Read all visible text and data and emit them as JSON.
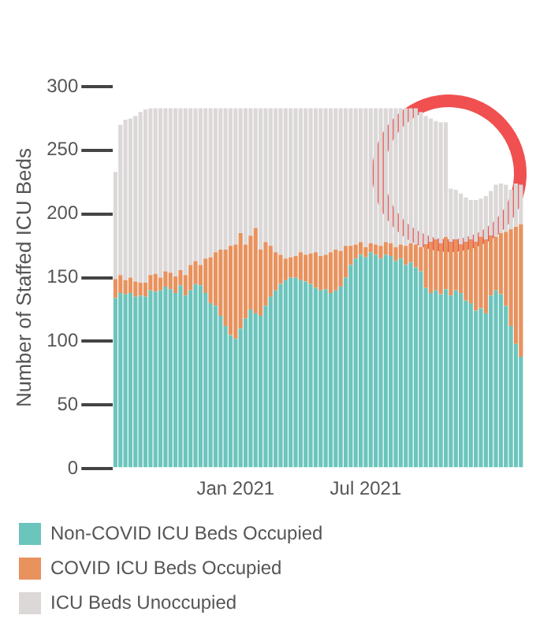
{
  "chart_data": {
    "type": "bar",
    "stacked": true,
    "ylabel": "Number of Staffed ICU Beds",
    "ylim": [
      0,
      300
    ],
    "yticks": [
      0,
      50,
      100,
      150,
      200,
      250,
      300
    ],
    "grid": false,
    "legend": "bottom",
    "categories": [
      null,
      null,
      null,
      null,
      null,
      null,
      null,
      null,
      null,
      null,
      null,
      null,
      null,
      null,
      null,
      null,
      null,
      null,
      null,
      null,
      null,
      null,
      null,
      null,
      "Jan 2021",
      null,
      null,
      null,
      null,
      null,
      null,
      null,
      null,
      null,
      null,
      null,
      null,
      null,
      null,
      null,
      null,
      null,
      null,
      null,
      null,
      null,
      null,
      null,
      null,
      null,
      "Jul 2021",
      null,
      null,
      null,
      null,
      null,
      null,
      null,
      null,
      null,
      null,
      null,
      null,
      null,
      null,
      null,
      null,
      null,
      null,
      null,
      null,
      null,
      null,
      null,
      null,
      null,
      null,
      null,
      null,
      null,
      null,
      null
    ],
    "series": [
      {
        "name": "Non-COVID ICU Beds Occupied",
        "color": "#6cc5bd",
        "values": [
          134,
          138,
          137,
          138,
          135,
          136,
          135,
          140,
          139,
          140,
          143,
          141,
          138,
          144,
          136,
          140,
          145,
          144,
          138,
          130,
          128,
          120,
          112,
          105,
          102,
          110,
          118,
          125,
          122,
          120,
          128,
          135,
          140,
          145,
          148,
          150,
          150,
          148,
          147,
          145,
          142,
          140,
          141,
          138,
          140,
          143,
          150,
          160,
          165,
          168,
          166,
          170,
          168,
          165,
          168,
          167,
          163,
          165,
          160,
          162,
          158,
          155,
          142,
          138,
          140,
          137,
          141,
          136,
          140,
          138,
          132,
          130,
          124,
          126,
          122,
          136,
          140,
          137,
          128,
          112,
          98,
          88
        ]
      },
      {
        "name": "COVID ICU Beds Occupied",
        "color": "#e8925e",
        "values": [
          15,
          14,
          11,
          12,
          12,
          10,
          11,
          12,
          14,
          10,
          12,
          13,
          13,
          12,
          16,
          20,
          18,
          16,
          27,
          36,
          42,
          52,
          60,
          70,
          74,
          75,
          58,
          58,
          67,
          52,
          50,
          40,
          30,
          23,
          17,
          16,
          17,
          22,
          21,
          24,
          28,
          27,
          27,
          32,
          32,
          28,
          25,
          15,
          11,
          10,
          8,
          7,
          8,
          10,
          10,
          10,
          11,
          11,
          15,
          15,
          18,
          19,
          34,
          40,
          40,
          40,
          41,
          42,
          40,
          38,
          46,
          50,
          54,
          56,
          58,
          47,
          42,
          48,
          58,
          76,
          92,
          104
        ]
      },
      {
        "name": "ICU Beds Unoccupied",
        "color": "#dcd8d8",
        "values": [
          84,
          118,
          126,
          125,
          130,
          134,
          136,
          131,
          130,
          133,
          128,
          129,
          132,
          127,
          131,
          123,
          120,
          123,
          118,
          117,
          113,
          111,
          111,
          108,
          107,
          98,
          107,
          100,
          94,
          111,
          105,
          108,
          113,
          115,
          118,
          117,
          116,
          113,
          115,
          114,
          113,
          116,
          115,
          113,
          111,
          112,
          108,
          108,
          107,
          105,
          109,
          106,
          107,
          108,
          105,
          106,
          109,
          107,
          108,
          106,
          107,
          106,
          101,
          97,
          93,
          95,
          90,
          42,
          39,
          40,
          35,
          31,
          33,
          30,
          34,
          35,
          41,
          39,
          37,
          31,
          34,
          31
        ]
      }
    ]
  }
}
